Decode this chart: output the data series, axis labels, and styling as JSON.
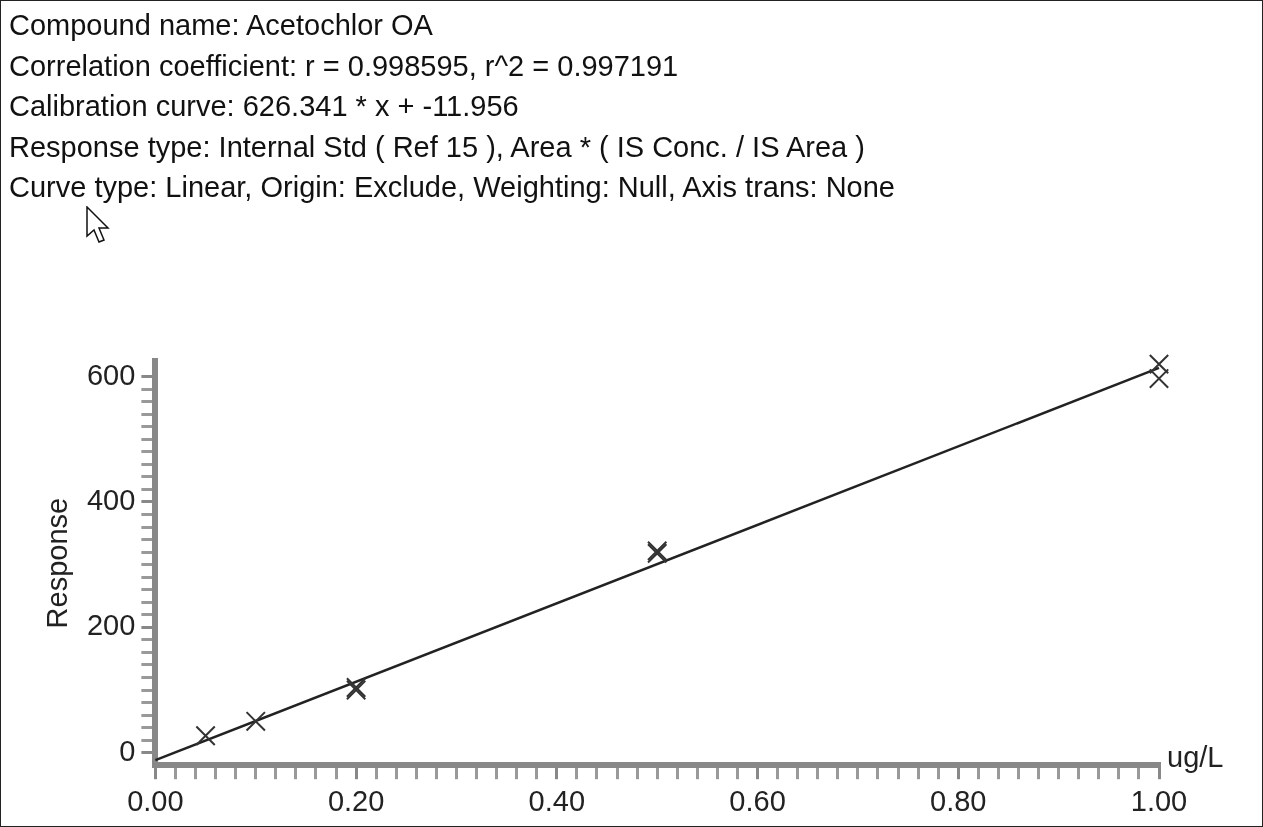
{
  "chart_data": {
    "type": "scatter",
    "title": "Compound name: Acetochlor OA",
    "annotations": [
      "Correlation coefficient: r = 0.998595, r^2 = 0.997191",
      "Calibration curve: 626.341 * x + -11.956",
      "Response type: Internal Std ( Ref 15 ), Area * ( IS Conc. / IS Area )",
      "Curve type: Linear, Origin: Exclude, Weighting: Null, Axis trans: None"
    ],
    "xlabel": "ug/L",
    "ylabel": "Response",
    "series": [
      {
        "color": "#333333",
        "marker": "cross",
        "x": [
          0.05,
          0.1,
          0.2,
          0.2,
          0.5,
          0.5,
          1.0,
          1.0
        ],
        "values": [
          27,
          50,
          100,
          104,
          318,
          322,
          620,
          597
        ]
      },
      {
        "type": "line",
        "color": "#222222",
        "marker": "none",
        "x": [
          0,
          1
        ],
        "values": [
          -12,
          614
        ]
      }
    ],
    "xlim": [
      0,
      1
    ],
    "ylim": [
      -20,
      625
    ],
    "xticks": [
      {
        "value": 0,
        "label": "0.00"
      },
      {
        "value": 0.02,
        "label": null
      },
      {
        "value": 0.04,
        "label": null
      },
      {
        "value": 0.06,
        "label": null
      },
      {
        "value": 0.08,
        "label": null
      },
      {
        "value": 0.1,
        "label": null
      },
      {
        "value": 0.12,
        "label": null
      },
      {
        "value": 0.14,
        "label": null
      },
      {
        "value": 0.16,
        "label": null
      },
      {
        "value": 0.18,
        "label": null
      },
      {
        "value": 0.2,
        "label": "0.20"
      },
      {
        "value": 0.22,
        "label": null
      },
      {
        "value": 0.24,
        "label": null
      },
      {
        "value": 0.26,
        "label": null
      },
      {
        "value": 0.28,
        "label": null
      },
      {
        "value": 0.3,
        "label": null
      },
      {
        "value": 0.32,
        "label": null
      },
      {
        "value": 0.34,
        "label": null
      },
      {
        "value": 0.36,
        "label": null
      },
      {
        "value": 0.38,
        "label": null
      },
      {
        "value": 0.4,
        "label": "0.40"
      },
      {
        "value": 0.42,
        "label": null
      },
      {
        "value": 0.44,
        "label": null
      },
      {
        "value": 0.46,
        "label": null
      },
      {
        "value": 0.48,
        "label": null
      },
      {
        "value": 0.5,
        "label": null
      },
      {
        "value": 0.52,
        "label": null
      },
      {
        "value": 0.54,
        "label": null
      },
      {
        "value": 0.56,
        "label": null
      },
      {
        "value": 0.58,
        "label": null
      },
      {
        "value": 0.6,
        "label": "0.60"
      },
      {
        "value": 0.62,
        "label": null
      },
      {
        "value": 0.64,
        "label": null
      },
      {
        "value": 0.66,
        "label": null
      },
      {
        "value": 0.68,
        "label": null
      },
      {
        "value": 0.7,
        "label": null
      },
      {
        "value": 0.72,
        "label": null
      },
      {
        "value": 0.74,
        "label": null
      },
      {
        "value": 0.76,
        "label": null
      },
      {
        "value": 0.78,
        "label": null
      },
      {
        "value": 0.8,
        "label": "0.80"
      },
      {
        "value": 0.82,
        "label": null
      },
      {
        "value": 0.84,
        "label": null
      },
      {
        "value": 0.86,
        "label": null
      },
      {
        "value": 0.88,
        "label": null
      },
      {
        "value": 0.9,
        "label": null
      },
      {
        "value": 0.92,
        "label": null
      },
      {
        "value": 0.94,
        "label": null
      },
      {
        "value": 0.96,
        "label": null
      },
      {
        "value": 0.98,
        "label": null
      },
      {
        "value": 1,
        "label": "1.00"
      }
    ],
    "yticks": [
      0,
      {
        "value": 20,
        "label": null
      },
      {
        "value": 40,
        "label": null
      },
      {
        "value": 60,
        "label": null
      },
      {
        "value": 80,
        "label": null
      },
      {
        "value": 100,
        "label": null
      },
      {
        "value": 120,
        "label": null
      },
      {
        "value": 140,
        "label": null
      },
      {
        "value": 160,
        "label": null
      },
      {
        "value": 180,
        "label": null
      },
      200,
      {
        "value": 220,
        "label": null
      },
      {
        "value": 240,
        "label": null
      },
      {
        "value": 260,
        "label": null
      },
      {
        "value": 280,
        "label": null
      },
      {
        "value": 300,
        "label": null
      },
      {
        "value": 320,
        "label": null
      },
      {
        "value": 340,
        "label": null
      },
      {
        "value": 360,
        "label": null
      },
      {
        "value": 380,
        "label": null
      },
      400,
      {
        "value": 420,
        "label": null
      },
      {
        "value": 440,
        "label": null
      },
      {
        "value": 460,
        "label": null
      },
      {
        "value": 480,
        "label": null
      },
      {
        "value": 500,
        "label": null
      },
      {
        "value": 520,
        "label": null
      },
      {
        "value": 540,
        "label": null
      },
      {
        "value": 560,
        "label": null
      },
      {
        "value": 580,
        "label": null
      },
      600
    ],
    "grid": false,
    "legend": false
  }
}
